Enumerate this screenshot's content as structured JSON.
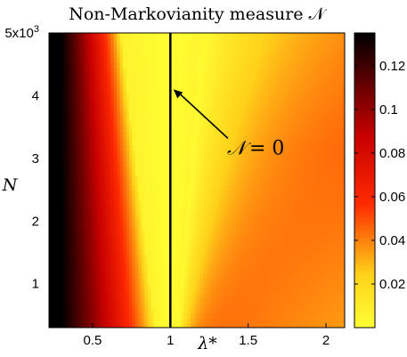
{
  "chart_data": {
    "type": "heatmap",
    "title": "Non-Markovianity measure 𝒩",
    "xlabel": "λ*",
    "ylabel": "N",
    "xlim": [
      0.22,
      2.12
    ],
    "ylim": [
      300,
      5000
    ],
    "x_ticks": [
      {
        "value": 0.5,
        "label": "0.5"
      },
      {
        "value": 1,
        "label": "1"
      },
      {
        "value": 1.5,
        "label": "1.5"
      },
      {
        "value": 2,
        "label": "2"
      }
    ],
    "y_ticks": [
      {
        "value": 1000,
        "label": "1"
      },
      {
        "value": 2000,
        "label": "2"
      },
      {
        "value": 3000,
        "label": "3"
      },
      {
        "value": 4000,
        "label": "4"
      },
      {
        "value": 5000,
        "label": "5x10"
      }
    ],
    "y_exponent": "3",
    "colorbar": {
      "min": 0,
      "max": 0.135,
      "ticks": [
        {
          "value": 0.02,
          "label": "0.02"
        },
        {
          "value": 0.04,
          "label": "0.04"
        },
        {
          "value": 0.06,
          "label": "0.06"
        },
        {
          "value": 0.08,
          "label": "0.08"
        },
        {
          "value": 0.1,
          "label": "0.1"
        },
        {
          "value": 0.12,
          "label": "0.12"
        }
      ],
      "colormap": [
        "#ffff33",
        "#ff0000",
        "#000000"
      ]
    },
    "reference_line": {
      "x": 1
    },
    "annotation": {
      "text_symbol": "𝒩",
      "text_rest": " = 0",
      "text_at": {
        "x": 1.45,
        "y": 2950
      },
      "arrow_to": {
        "x": 1.02,
        "y": 4100
      }
    },
    "grid": false
  }
}
